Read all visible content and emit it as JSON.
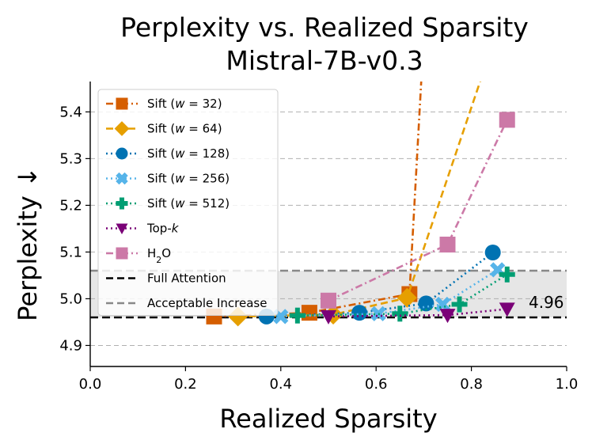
{
  "chart_data": {
    "type": "line",
    "title": "Perplexity vs. Realized Sparsity",
    "subtitle": "Mistral-7B-v0.3",
    "xlabel": "Realized Sparsity",
    "ylabel": "Perplexity ↓",
    "xlim": [
      0.0,
      1.0
    ],
    "ylim": [
      4.855,
      5.465
    ],
    "xticks": [
      "0.0",
      "0.2",
      "0.4",
      "0.6",
      "0.8",
      "1.0"
    ],
    "yticks": [
      "4.9",
      "5.0",
      "5.1",
      "5.2",
      "5.3",
      "5.4"
    ],
    "xtick_values": [
      0.0,
      0.2,
      0.4,
      0.6,
      0.8,
      1.0
    ],
    "ytick_values": [
      4.9,
      5.0,
      5.1,
      5.2,
      5.3,
      5.4
    ],
    "grid": "horizontal dashed",
    "legend_position": "upper-left",
    "full_attention": 4.96,
    "acceptable_increase": 5.06,
    "annotation": "4.96",
    "series": [
      {
        "name": "Sift (w = 32)",
        "name_prefix": "Sift (",
        "name_var": "w",
        "name_suffix": " = 32)",
        "color": "#d55e00",
        "marker": "square",
        "linestyle": "dashdot",
        "x": [
          0.26,
          0.46,
          0.67,
          0.695
        ],
        "y": [
          4.962,
          4.97,
          5.01,
          5.47
        ]
      },
      {
        "name": "Sift (w = 64)",
        "name_prefix": "Sift (",
        "name_var": "w",
        "name_suffix": " = 64)",
        "color": "#e69f00",
        "marker": "diamond",
        "linestyle": "dashed",
        "x": [
          0.31,
          0.51,
          0.665,
          0.82
        ],
        "y": [
          4.962,
          4.966,
          5.002,
          5.47
        ]
      },
      {
        "name": "Sift (w = 128)",
        "name_prefix": "Sift (",
        "name_var": "w",
        "name_suffix": " = 128)",
        "color": "#0072b2",
        "marker": "circle",
        "linestyle": "dotted",
        "x": [
          0.37,
          0.565,
          0.705,
          0.845
        ],
        "y": [
          4.962,
          4.97,
          4.99,
          5.099
        ]
      },
      {
        "name": "Sift (w = 256)",
        "name_prefix": "Sift (",
        "name_var": "w",
        "name_suffix": " = 256)",
        "color": "#56b4e9",
        "marker": "x",
        "linestyle": "dotted",
        "x": [
          0.4,
          0.605,
          0.74,
          0.855
        ],
        "y": [
          4.962,
          4.968,
          4.988,
          5.062
        ]
      },
      {
        "name": "Sift (w = 512)",
        "name_prefix": "Sift (",
        "name_var": "w",
        "name_suffix": " = 512)",
        "color": "#009e73",
        "marker": "plus",
        "linestyle": "dotted",
        "x": [
          0.435,
          0.65,
          0.775,
          0.875
        ],
        "y": [
          4.964,
          4.968,
          4.988,
          5.052
        ]
      },
      {
        "name": "Top-k",
        "name_prefix": "Top-",
        "name_var": "k",
        "name_suffix": "",
        "color": "#7a0177",
        "marker": "triangle-down",
        "linestyle": "dotted",
        "x": [
          0.5,
          0.75,
          0.875
        ],
        "y": [
          4.962,
          4.965,
          4.978
        ]
      },
      {
        "name": "H2O",
        "name_prefix": "H",
        "name_sub": "2",
        "name_suffix": "O",
        "color": "#cc79a7",
        "marker": "square",
        "linestyle": "dashdot",
        "x": [
          0.5,
          0.75,
          0.875
        ],
        "y": [
          4.996,
          5.116,
          5.383
        ]
      }
    ],
    "legend_extra": [
      {
        "name": "Full Attention",
        "color": "#000000",
        "linestyle": "dashed"
      },
      {
        "name": "Acceptable Increase",
        "color": "#888888",
        "linestyle": "dashed"
      }
    ]
  }
}
